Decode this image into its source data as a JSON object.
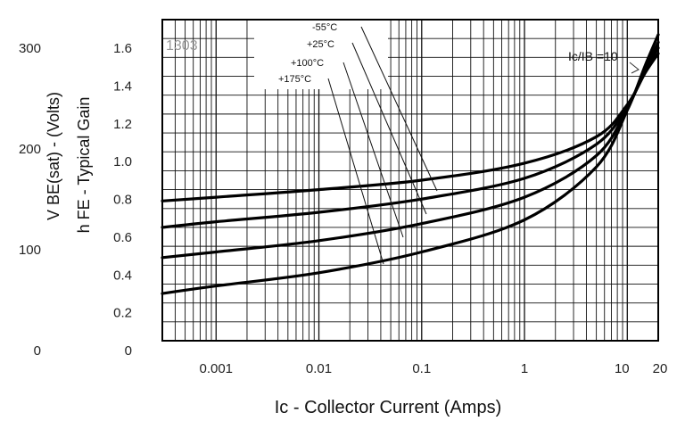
{
  "chart_data": {
    "type": "line",
    "code": "1303",
    "xlabel": "Ic - Collector Current (Amps)",
    "ylabel_left": "V BE(sat) - (Volts)",
    "ylabel_right": "h FE - Typical Gain",
    "x_scale": "log",
    "xlim": [
      0.0003,
      20
    ],
    "x_ticks": [
      {
        "value": 0.001,
        "label": "0.001"
      },
      {
        "value": 0.01,
        "label": "0.01"
      },
      {
        "value": 0.1,
        "label": "0.1"
      },
      {
        "value": 1,
        "label": "1"
      },
      {
        "value": 10,
        "label": "10"
      },
      {
        "value": 20,
        "label": "20"
      }
    ],
    "ylim": [
      0,
      1.7
    ],
    "y_ticks_vbe": [
      {
        "value": 0,
        "label": "0"
      },
      {
        "value": 0.2,
        "label": "0.2"
      },
      {
        "value": 0.4,
        "label": "0.4"
      },
      {
        "value": 0.6,
        "label": "0.6"
      },
      {
        "value": 0.8,
        "label": "0.8"
      },
      {
        "value": 1.0,
        "label": "1.0"
      },
      {
        "value": 1.2,
        "label": "1.2"
      },
      {
        "value": 1.4,
        "label": "1.4"
      },
      {
        "value": 1.6,
        "label": "1.6"
      }
    ],
    "y_ticks_hfe": [
      {
        "value": 0,
        "label": "0"
      },
      {
        "value": 100,
        "label": "100"
      },
      {
        "value": 200,
        "label": "200"
      },
      {
        "value": 300,
        "label": "300"
      }
    ],
    "series": [
      {
        "name": "-55°C",
        "x": [
          0.0003,
          0.001,
          0.01,
          0.1,
          1,
          5,
          10,
          15,
          20
        ],
        "y": [
          0.74,
          0.76,
          0.8,
          0.85,
          0.94,
          1.08,
          1.25,
          1.42,
          1.52
        ]
      },
      {
        "name": "+25°C",
        "x": [
          0.0003,
          0.001,
          0.01,
          0.1,
          1,
          5,
          10,
          15,
          20
        ],
        "y": [
          0.6,
          0.63,
          0.68,
          0.75,
          0.86,
          1.04,
          1.24,
          1.43,
          1.55
        ]
      },
      {
        "name": "+100°C",
        "x": [
          0.0003,
          0.001,
          0.01,
          0.1,
          1,
          5,
          10,
          15,
          20
        ],
        "y": [
          0.44,
          0.47,
          0.53,
          0.62,
          0.76,
          0.98,
          1.23,
          1.44,
          1.58
        ]
      },
      {
        "name": "+175°C",
        "x": [
          0.0003,
          0.001,
          0.01,
          0.1,
          1,
          5,
          10,
          15,
          20
        ],
        "y": [
          0.25,
          0.29,
          0.36,
          0.47,
          0.64,
          0.92,
          1.22,
          1.46,
          1.62
        ]
      }
    ],
    "legend_labels": [
      "-55°C",
      "+25°C",
      "+100°C",
      "+175°C"
    ],
    "annotation": "Ic/IB =10",
    "grid": true
  }
}
